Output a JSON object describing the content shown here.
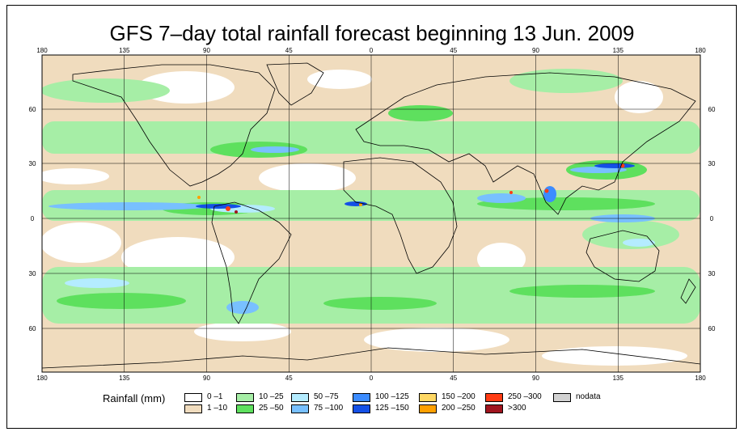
{
  "title": "GFS 7–day total rainfall forecast beginning 13 Jun. 2009",
  "lon_ticks": [
    "180",
    "135",
    "90",
    "45",
    "0",
    "45",
    "90",
    "135",
    "180"
  ],
  "lat_ticks": [
    "60",
    "30",
    "0",
    "30",
    "60"
  ],
  "legend": {
    "title": "Rainfall (mm)",
    "items": [
      {
        "label": "0 –1",
        "color": "#ffffff"
      },
      {
        "label": "1 –10",
        "color": "#f0dcbe"
      },
      {
        "label": "10 –25",
        "color": "#a6eea6"
      },
      {
        "label": "25 –50",
        "color": "#5ee05e"
      },
      {
        "label": "50 –75",
        "color": "#b4ecff"
      },
      {
        "label": "75 –100",
        "color": "#78c0ff"
      },
      {
        "label": "100 –125",
        "color": "#3c8cff"
      },
      {
        "label": "125 –150",
        "color": "#1450e6"
      },
      {
        "label": "150 –200",
        "color": "#ffd864"
      },
      {
        "label": "200 –250",
        "color": "#ffa000"
      },
      {
        "label": "250 –300",
        "color": "#ff3c14"
      },
      {
        "label": ">300",
        "color": "#a0141e"
      },
      {
        "label": "nodata",
        "color": "#d2d2d2"
      }
    ]
  },
  "colors": {
    "land_outline": "#000000",
    "grid": "#000000"
  }
}
